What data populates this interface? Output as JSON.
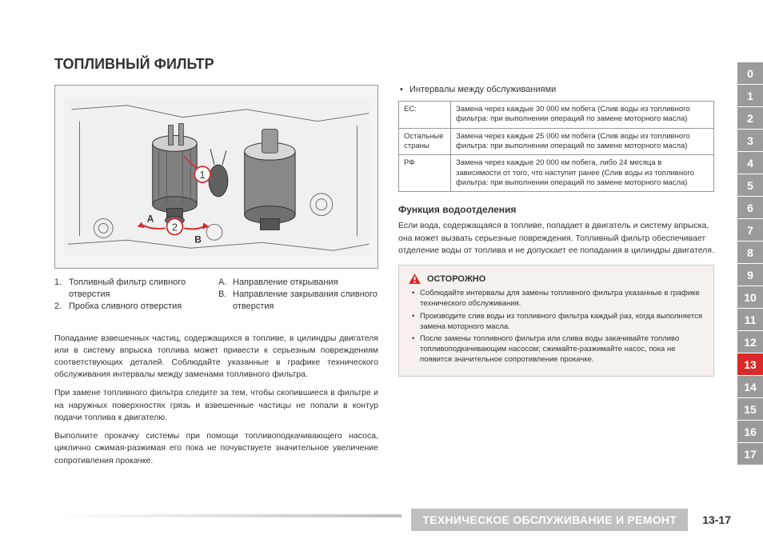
{
  "title": "ТОПЛИВНЫЙ ФИЛЬТР",
  "figure": {
    "callouts": {
      "one": "1",
      "two": "2",
      "a": "A",
      "b": "B"
    },
    "colors": {
      "callout_fill": "#ffffff",
      "callout_stroke": "#d82a2a",
      "arrow": "#d82a2a",
      "body": "#808080",
      "body_light": "#b0b0b0",
      "line": "#333333"
    }
  },
  "legend": {
    "left": [
      {
        "num": "1.",
        "text": "Топливный фильтр сливного отверстия"
      },
      {
        "num": "2.",
        "text": "Пробка сливного отверстия"
      }
    ],
    "right": [
      {
        "num": "A.",
        "text": "Направление открывания"
      },
      {
        "num": "B.",
        "text": "Направление закрывания сливного отверстия"
      }
    ]
  },
  "paragraphs": {
    "p1": "Попадание взвешенных частиц, содержащихся в топливе, в цилиндры двигателя или в систему впрыска топлива может привести к серьезным повреждениям соответствующих деталей. Соблюдайте указанные в графике технического обслуживания интервалы между заменами топливного фильтра.",
    "p2": "При замене топливного фильтра следите за тем, чтобы скопившиеся в фильтре и на наружных поверхностях грязь и взвешенные частицы не попали в контур подачи топлива к двигателю.",
    "p3": "Выполните прокачку системы при помощи топливоподкачивающего насоса, циклично сжимая-разжимая его пока не почувствуете значительное увеличение сопротивления прокачке."
  },
  "right": {
    "interval_bullet": "Интервалы между обслуживаниями",
    "table": [
      {
        "label": "ЕС:",
        "text": "Замена через каждые 30 000 км побега\n(Слив воды из топливного фильтра: при выполнении операций по замене моторного масла)"
      },
      {
        "label": "Остальные страны",
        "text": "Замена через каждые 25 000 км побега\n(Слив воды из топливного фильтра: при выполнении операций по замене моторного масла)"
      },
      {
        "label": "РФ",
        "text": "Замена через каждые 20 000 км побега, либо 24 месяца в зависимости от того, что наступит ранее (Слив воды из топливного фильтра: при выполнении операций по замене моторного масла)"
      }
    ],
    "subheading": "Функция водоотделения",
    "subtext": "Если вода, содержащаяся в топливе, попадает в двигатель и систему впрыска, она может вызвать серьезные повреждения. Топливный фильтр обеспечивает отделение воды от топлива и не допускает ее попадания в цилиндры двигателя."
  },
  "caution": {
    "title": "ОСТОРОЖНО",
    "items": [
      "Соблюдайте интервалы для замены топливного фильтра указанные в графике технического обслуживания.",
      "Производите слив воды из топливного фильтра каждый раз, когда выполняется замена моторного масла.",
      "После замены топливного фильтра или слива воды закачивайте топливо топливоподкачивающим насосом; сжимайте-разжимайте насос, пока не появится значительное сопротивление прокачке."
    ],
    "icon_color": "#d82a2a"
  },
  "tabs": {
    "items": [
      "0",
      "1",
      "2",
      "3",
      "4",
      "5",
      "6",
      "7",
      "8",
      "9",
      "10",
      "11",
      "12",
      "13",
      "14",
      "15",
      "16",
      "17"
    ],
    "active": "13",
    "bg": "#9b9b9b",
    "active_bg": "#d82a2a"
  },
  "footer": {
    "title": "ТЕХНИЧЕСКОЕ ОБСЛУЖИВАНИЕ И РЕМОНТ",
    "page": "13-17"
  }
}
